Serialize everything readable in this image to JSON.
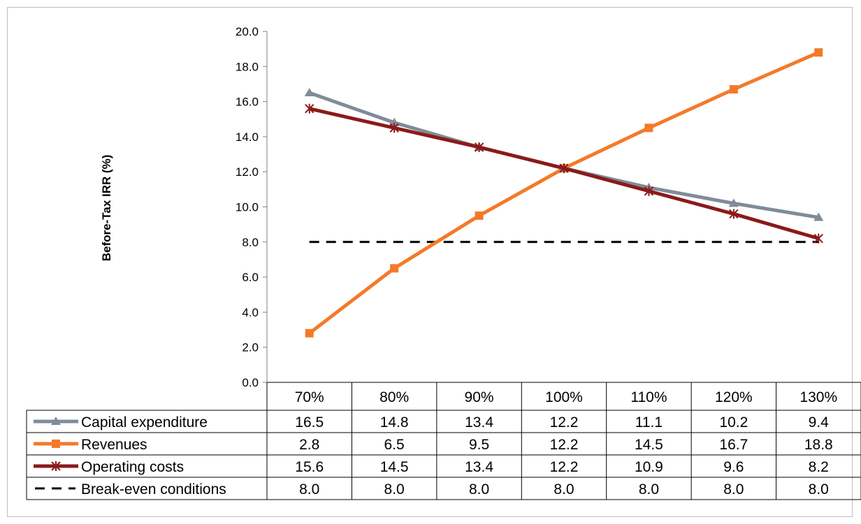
{
  "chart_data": {
    "type": "line",
    "ylabel": "Before-Tax IRR (%)",
    "xlabel": "",
    "ylim": [
      0,
      20
    ],
    "ytick_step": 2,
    "ytick_labels": [
      "0.0",
      "2.0",
      "4.0",
      "6.0",
      "8.0",
      "10.0",
      "12.0",
      "14.0",
      "16.0",
      "18.0",
      "20.0"
    ],
    "categories": [
      "70%",
      "80%",
      "90%",
      "100%",
      "110%",
      "120%",
      "130%"
    ],
    "grid": false,
    "legend": "data-table",
    "series": [
      {
        "name": "Capital expenditure",
        "values": [
          16.5,
          14.8,
          13.4,
          12.2,
          11.1,
          10.2,
          9.4
        ],
        "color": "#7f8c99",
        "marker": "triangle",
        "style": "solid",
        "labels": [
          "16.5",
          "14.8",
          "13.4",
          "12.2",
          "11.1",
          "10.2",
          "9.4"
        ]
      },
      {
        "name": "Revenues",
        "values": [
          2.8,
          6.5,
          9.5,
          12.2,
          14.5,
          16.7,
          18.8
        ],
        "color": "#f47a2a",
        "marker": "square",
        "style": "solid",
        "labels": [
          "2.8",
          "6.5",
          "9.5",
          "12.2",
          "14.5",
          "16.7",
          "18.8"
        ]
      },
      {
        "name": "Operating costs",
        "values": [
          15.6,
          14.5,
          13.4,
          12.2,
          10.9,
          9.6,
          8.2
        ],
        "color": "#8b1a1a",
        "marker": "star",
        "style": "solid",
        "labels": [
          "15.6",
          "14.5",
          "13.4",
          "12.2",
          "10.9",
          "9.6",
          "8.2"
        ]
      },
      {
        "name": "Break-even conditions",
        "values": [
          8.0,
          8.0,
          8.0,
          8.0,
          8.0,
          8.0,
          8.0
        ],
        "color": "#000000",
        "marker": "none",
        "style": "dashed",
        "labels": [
          "8.0",
          "8.0",
          "8.0",
          "8.0",
          "8.0",
          "8.0",
          "8.0"
        ]
      }
    ]
  }
}
